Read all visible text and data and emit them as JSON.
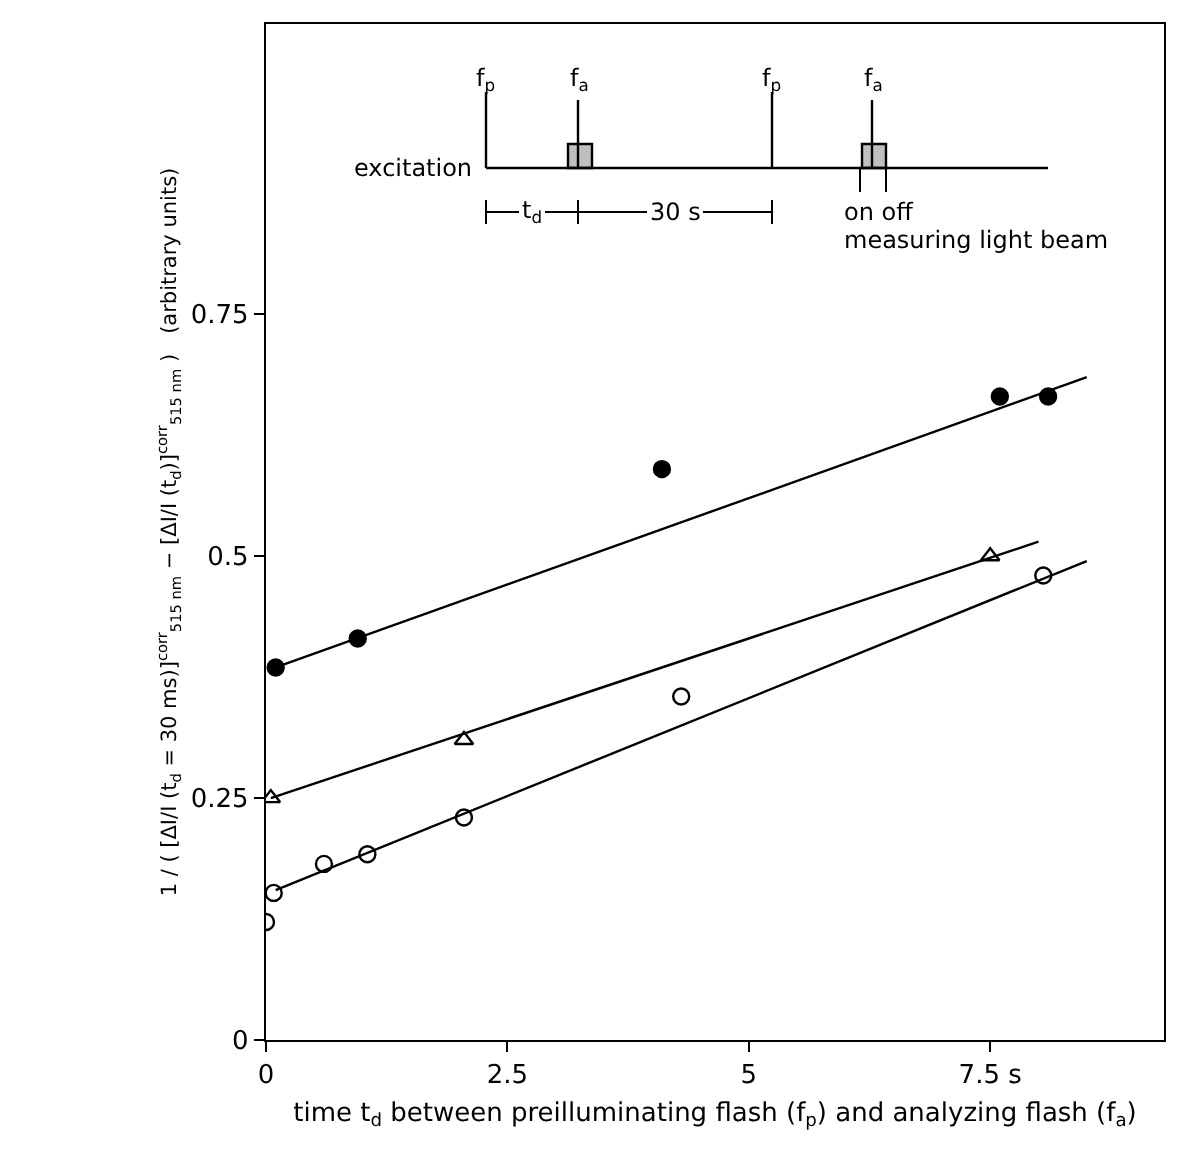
{
  "chart_data": {
    "type": "scatter",
    "xlabel": "time t$_{d}$ between preilluminating flash (f$_{p}$) and analyzing flash (f$_{a}$)",
    "ylabel": "1 / ( [ΔI/I (t$_{d}$ = 30 ms)]$^{corr}$$_{515 nm}$ − [ΔI/I (t$_{d}$)]$^{corr}$$_{515 nm}$ )   (arbitrary units)",
    "annotations": [
      "f$_{p}$",
      "f$_{a}$",
      "f$_{p}$",
      "f$_{a}$",
      "excitation",
      "t$_{d}$",
      "30 s",
      "on off",
      "measuring light beam"
    ],
    "xlim": [
      0,
      9.3
    ],
    "ylim": [
      0,
      1.05
    ],
    "xticks": [
      0,
      2.5,
      5,
      {
        "value": 7.5,
        "label": "7.5 s"
      }
    ],
    "yticks": [
      0,
      0.25,
      0.5,
      0.75
    ],
    "series": [
      {
        "marker": "circle",
        "color": "#000000",
        "x": [
          0.1,
          0.95,
          4.1,
          7.6,
          8.1
        ],
        "values": [
          0.385,
          0.415,
          0.59,
          0.665,
          0.665
        ]
      },
      {
        "marker": "triangle-open",
        "color": "#000000",
        "x": [
          0.05,
          2.05,
          7.5
        ],
        "values": [
          0.25,
          0.31,
          0.5
        ]
      },
      {
        "marker": "circle-open",
        "color": "#000000",
        "x": [
          0.0,
          0.08,
          0.6,
          1.05,
          2.05,
          4.3,
          8.05
        ],
        "values": [
          0.122,
          0.152,
          0.182,
          0.192,
          0.23,
          0.355,
          0.48
        ]
      },
      {
        "type": "line",
        "marker": "none",
        "color": "#000000",
        "x": [
          0.1,
          8.5
        ],
        "values": [
          0.385,
          0.685
        ]
      },
      {
        "type": "line",
        "marker": "none",
        "color": "#000000",
        "x": [
          0.05,
          8.0
        ],
        "values": [
          0.25,
          0.515
        ]
      },
      {
        "type": "line",
        "marker": "none",
        "color": "#000000",
        "x": [
          0.1,
          8.5
        ],
        "values": [
          0.155,
          0.495
        ]
      }
    ]
  }
}
